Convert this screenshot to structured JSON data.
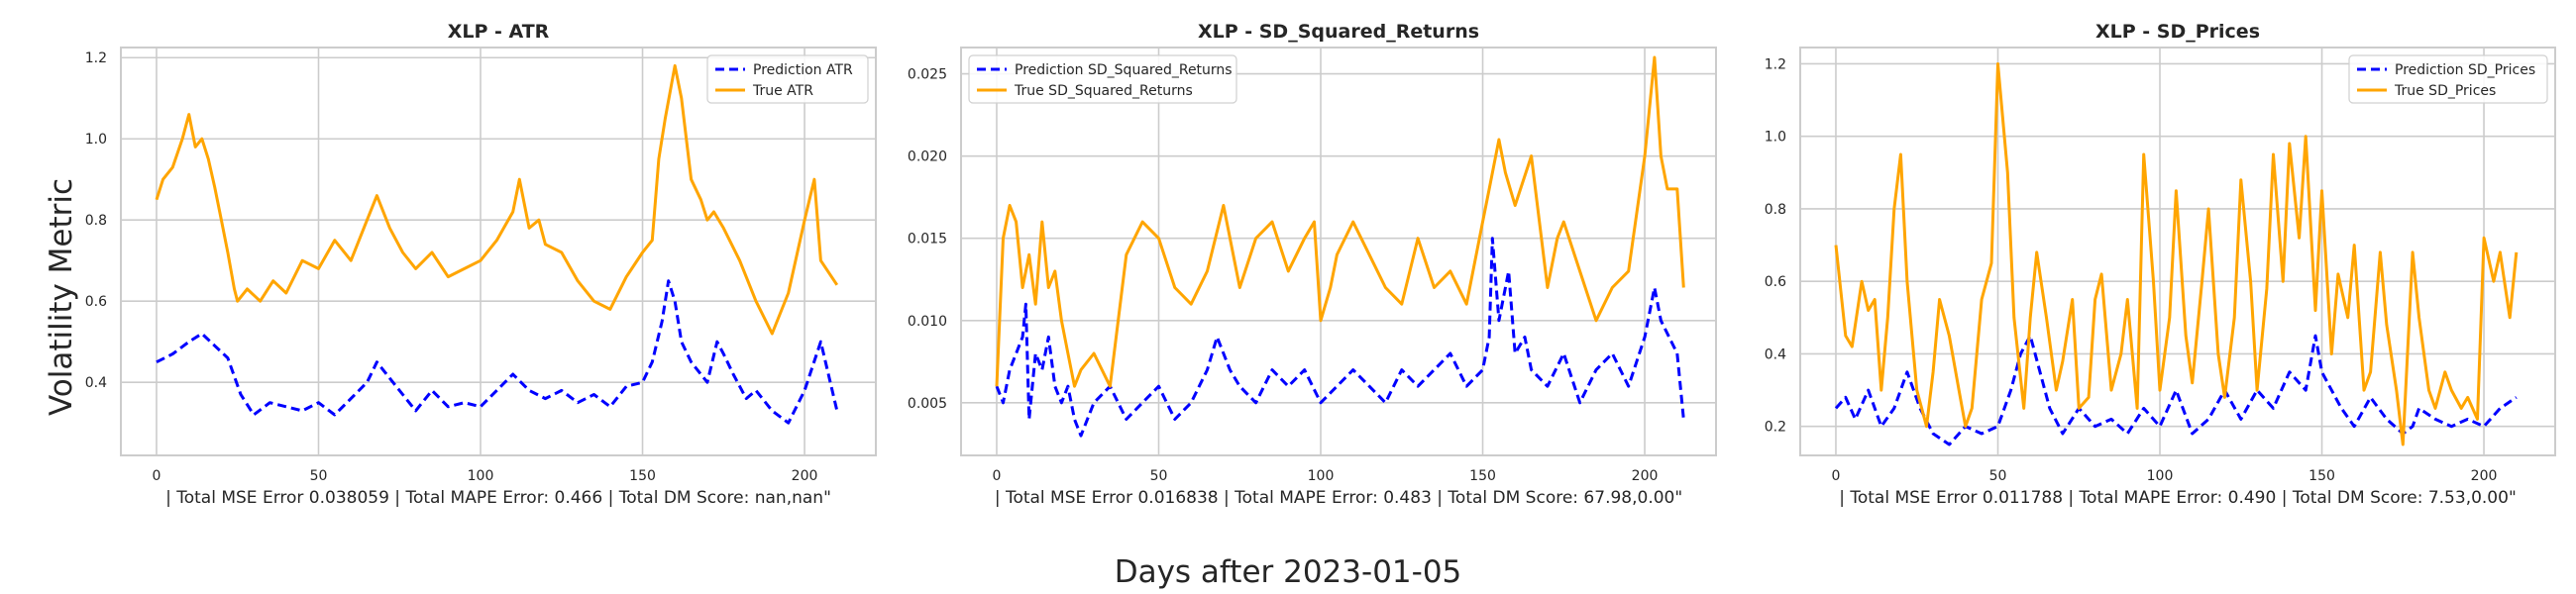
{
  "figure": {
    "ylabel": "Volatility Metric",
    "xlabel": "Days after 2023-01-05"
  },
  "colors": {
    "prediction": "#0000ff",
    "truth": "#ffa500",
    "grid": "#cccccc",
    "frame": "#cccccc",
    "text": "#262626"
  },
  "chart_data": [
    {
      "type": "line",
      "title": "XLP - ATR",
      "xlabel": "| Total MSE Error 0.038059 | Total MAPE Error: 0.466 | Total DM Score: nan,nan\"",
      "ylabel": "",
      "xlim": [
        -11,
        222
      ],
      "ylim": [
        0.22,
        1.225
      ],
      "xticks": [
        0,
        50,
        100,
        150,
        200
      ],
      "xtick_labels": [
        "0",
        "50",
        "100",
        "150",
        "200"
      ],
      "yticks": [
        0.4,
        0.6,
        0.8,
        1.0,
        1.2
      ],
      "ytick_labels": [
        "0.4",
        "0.6",
        "0.8",
        "1.0",
        "1.2"
      ],
      "grid": true,
      "legend": "top-right",
      "series": [
        {
          "name": "Prediction ATR",
          "style": "dashed",
          "color_key": "prediction",
          "x": [
            0,
            5,
            10,
            14,
            18,
            22,
            26,
            30,
            35,
            40,
            45,
            50,
            55,
            60,
            65,
            68,
            72,
            76,
            80,
            85,
            90,
            95,
            100,
            105,
            110,
            115,
            120,
            125,
            130,
            135,
            140,
            145,
            150,
            153,
            156,
            158,
            160,
            162,
            165,
            170,
            173,
            175,
            178,
            182,
            185,
            190,
            195,
            200,
            205,
            210
          ],
          "y": [
            0.45,
            0.47,
            0.5,
            0.52,
            0.49,
            0.46,
            0.37,
            0.32,
            0.35,
            0.34,
            0.33,
            0.35,
            0.32,
            0.36,
            0.4,
            0.45,
            0.41,
            0.37,
            0.33,
            0.38,
            0.34,
            0.35,
            0.34,
            0.38,
            0.42,
            0.38,
            0.36,
            0.38,
            0.35,
            0.37,
            0.34,
            0.39,
            0.4,
            0.45,
            0.55,
            0.65,
            0.6,
            0.5,
            0.45,
            0.4,
            0.5,
            0.47,
            0.42,
            0.36,
            0.38,
            0.33,
            0.3,
            0.38,
            0.5,
            0.33
          ]
        },
        {
          "name": "True ATR",
          "style": "solid",
          "color_key": "truth",
          "x": [
            0,
            2,
            5,
            8,
            10,
            12,
            14,
            16,
            18,
            20,
            22,
            24,
            25,
            28,
            32,
            36,
            40,
            45,
            50,
            55,
            60,
            65,
            68,
            72,
            76,
            80,
            85,
            90,
            95,
            100,
            105,
            110,
            112,
            115,
            118,
            120,
            125,
            130,
            135,
            140,
            145,
            150,
            153,
            155,
            157,
            160,
            162,
            165,
            168,
            170,
            172,
            175,
            180,
            185,
            190,
            195,
            200,
            203,
            205,
            210
          ],
          "y": [
            0.85,
            0.9,
            0.93,
            1.0,
            1.06,
            0.98,
            1.0,
            0.95,
            0.88,
            0.8,
            0.72,
            0.63,
            0.6,
            0.63,
            0.6,
            0.65,
            0.62,
            0.7,
            0.68,
            0.75,
            0.7,
            0.8,
            0.86,
            0.78,
            0.72,
            0.68,
            0.72,
            0.66,
            0.68,
            0.7,
            0.75,
            0.82,
            0.9,
            0.78,
            0.8,
            0.74,
            0.72,
            0.65,
            0.6,
            0.58,
            0.66,
            0.72,
            0.75,
            0.95,
            1.05,
            1.18,
            1.1,
            0.9,
            0.85,
            0.8,
            0.82,
            0.78,
            0.7,
            0.6,
            0.52,
            0.62,
            0.8,
            0.9,
            0.7,
            0.64
          ]
        }
      ]
    },
    {
      "type": "line",
      "title": "XLP - SD_Squared_Returns",
      "xlabel": "| Total MSE Error 0.016838 | Total MAPE Error: 0.483 | Total DM Score: 67.98,0.00\"",
      "ylabel": "",
      "xlim": [
        -11,
        222
      ],
      "ylim": [
        0.0018,
        0.0266
      ],
      "xticks": [
        0,
        50,
        100,
        150,
        200
      ],
      "xtick_labels": [
        "0",
        "50",
        "100",
        "150",
        "200"
      ],
      "yticks": [
        0.005,
        0.01,
        0.015,
        0.02,
        0.025
      ],
      "ytick_labels": [
        "0.005",
        "0.010",
        "0.015",
        "0.020",
        "0.025"
      ],
      "grid": true,
      "legend": "top-left",
      "series": [
        {
          "name": "Prediction SD_Squared_Returns",
          "style": "dashed",
          "color_key": "prediction",
          "x": [
            0,
            2,
            4,
            6,
            8,
            9,
            10,
            12,
            14,
            16,
            18,
            20,
            22,
            24,
            26,
            30,
            35,
            40,
            45,
            50,
            55,
            60,
            65,
            68,
            70,
            72,
            75,
            80,
            85,
            90,
            95,
            100,
            105,
            110,
            115,
            120,
            125,
            130,
            135,
            140,
            145,
            150,
            152,
            153,
            155,
            158,
            160,
            163,
            165,
            170,
            175,
            180,
            185,
            190,
            195,
            200,
            203,
            205,
            210,
            212
          ],
          "y": [
            0.006,
            0.005,
            0.007,
            0.008,
            0.009,
            0.011,
            0.004,
            0.008,
            0.007,
            0.009,
            0.006,
            0.005,
            0.006,
            0.004,
            0.003,
            0.005,
            0.006,
            0.004,
            0.005,
            0.006,
            0.004,
            0.005,
            0.007,
            0.009,
            0.008,
            0.007,
            0.006,
            0.005,
            0.007,
            0.006,
            0.007,
            0.005,
            0.006,
            0.007,
            0.006,
            0.005,
            0.007,
            0.006,
            0.007,
            0.008,
            0.006,
            0.007,
            0.009,
            0.015,
            0.01,
            0.013,
            0.008,
            0.009,
            0.007,
            0.006,
            0.008,
            0.005,
            0.007,
            0.008,
            0.006,
            0.009,
            0.012,
            0.01,
            0.008,
            0.004
          ]
        },
        {
          "name": "True SD_Squared_Returns",
          "style": "solid",
          "color_key": "truth",
          "x": [
            0,
            2,
            4,
            6,
            8,
            10,
            12,
            14,
            16,
            18,
            20,
            22,
            24,
            26,
            30,
            35,
            40,
            45,
            50,
            55,
            60,
            65,
            70,
            75,
            80,
            85,
            90,
            95,
            98,
            100,
            103,
            105,
            110,
            115,
            120,
            125,
            130,
            135,
            140,
            145,
            150,
            152,
            155,
            157,
            160,
            165,
            170,
            173,
            175,
            180,
            185,
            190,
            195,
            200,
            203,
            205,
            207,
            210,
            212
          ],
          "y": [
            0.006,
            0.015,
            0.017,
            0.016,
            0.012,
            0.014,
            0.011,
            0.016,
            0.012,
            0.013,
            0.01,
            0.008,
            0.006,
            0.007,
            0.008,
            0.006,
            0.014,
            0.016,
            0.015,
            0.012,
            0.011,
            0.013,
            0.017,
            0.012,
            0.015,
            0.016,
            0.013,
            0.015,
            0.016,
            0.01,
            0.012,
            0.014,
            0.016,
            0.014,
            0.012,
            0.011,
            0.015,
            0.012,
            0.013,
            0.011,
            0.016,
            0.018,
            0.021,
            0.019,
            0.017,
            0.02,
            0.012,
            0.015,
            0.016,
            0.013,
            0.01,
            0.012,
            0.013,
            0.02,
            0.026,
            0.02,
            0.018,
            0.018,
            0.012
          ]
        }
      ]
    },
    {
      "type": "line",
      "title": "XLP - SD_Prices",
      "xlabel": "| Total MSE Error 0.011788 | Total MAPE Error: 0.490 | Total DM Score: 7.53,0.00\"",
      "ylabel": "",
      "xlim": [
        -11,
        222
      ],
      "ylim": [
        0.12,
        1.245
      ],
      "xticks": [
        0,
        50,
        100,
        150,
        200
      ],
      "xtick_labels": [
        "0",
        "50",
        "100",
        "150",
        "200"
      ],
      "yticks": [
        0.2,
        0.4,
        0.6,
        0.8,
        1.0,
        1.2
      ],
      "ytick_labels": [
        "0.2",
        "0.4",
        "0.6",
        "0.8",
        "1.0",
        "1.2"
      ],
      "grid": true,
      "legend": "top-right",
      "series": [
        {
          "name": "Prediction SD_Prices",
          "style": "dashed",
          "color_key": "prediction",
          "x": [
            0,
            3,
            6,
            10,
            14,
            18,
            22,
            26,
            30,
            35,
            40,
            45,
            50,
            54,
            57,
            60,
            63,
            66,
            70,
            75,
            80,
            85,
            90,
            95,
            100,
            105,
            110,
            115,
            120,
            125,
            130,
            135,
            140,
            145,
            148,
            150,
            153,
            156,
            160,
            165,
            170,
            175,
            178,
            180,
            185,
            190,
            195,
            200,
            205,
            210
          ],
          "y": [
            0.25,
            0.28,
            0.22,
            0.3,
            0.2,
            0.25,
            0.35,
            0.25,
            0.18,
            0.15,
            0.2,
            0.18,
            0.2,
            0.3,
            0.4,
            0.45,
            0.35,
            0.25,
            0.18,
            0.25,
            0.2,
            0.22,
            0.18,
            0.25,
            0.2,
            0.3,
            0.18,
            0.22,
            0.3,
            0.22,
            0.3,
            0.25,
            0.35,
            0.3,
            0.45,
            0.35,
            0.3,
            0.25,
            0.2,
            0.28,
            0.22,
            0.18,
            0.2,
            0.25,
            0.22,
            0.2,
            0.22,
            0.2,
            0.25,
            0.28
          ]
        },
        {
          "name": "True SD_Prices",
          "style": "solid",
          "color_key": "truth",
          "x": [
            0,
            3,
            5,
            8,
            10,
            12,
            14,
            16,
            18,
            20,
            22,
            25,
            28,
            30,
            32,
            35,
            38,
            40,
            42,
            45,
            48,
            50,
            53,
            55,
            58,
            60,
            62,
            65,
            68,
            70,
            73,
            75,
            78,
            80,
            82,
            85,
            88,
            90,
            93,
            95,
            98,
            100,
            103,
            105,
            108,
            110,
            113,
            115,
            118,
            120,
            123,
            125,
            128,
            130,
            133,
            135,
            138,
            140,
            143,
            145,
            148,
            150,
            153,
            155,
            158,
            160,
            163,
            165,
            168,
            170,
            173,
            175,
            178,
            180,
            183,
            185,
            188,
            190,
            193,
            195,
            198,
            200,
            203,
            205,
            208,
            210
          ],
          "y": [
            0.7,
            0.45,
            0.42,
            0.6,
            0.52,
            0.55,
            0.3,
            0.5,
            0.8,
            0.95,
            0.6,
            0.3,
            0.2,
            0.35,
            0.55,
            0.45,
            0.3,
            0.2,
            0.25,
            0.55,
            0.65,
            1.2,
            0.9,
            0.5,
            0.25,
            0.5,
            0.68,
            0.5,
            0.3,
            0.38,
            0.55,
            0.25,
            0.28,
            0.55,
            0.62,
            0.3,
            0.4,
            0.55,
            0.25,
            0.95,
            0.6,
            0.3,
            0.5,
            0.85,
            0.45,
            0.32,
            0.6,
            0.8,
            0.4,
            0.28,
            0.5,
            0.88,
            0.6,
            0.3,
            0.58,
            0.95,
            0.6,
            0.98,
            0.72,
            1.0,
            0.52,
            0.85,
            0.4,
            0.62,
            0.5,
            0.7,
            0.3,
            0.35,
            0.68,
            0.48,
            0.3,
            0.15,
            0.68,
            0.5,
            0.3,
            0.25,
            0.35,
            0.3,
            0.25,
            0.28,
            0.22,
            0.72,
            0.6,
            0.68,
            0.5,
            0.68
          ]
        }
      ]
    }
  ]
}
